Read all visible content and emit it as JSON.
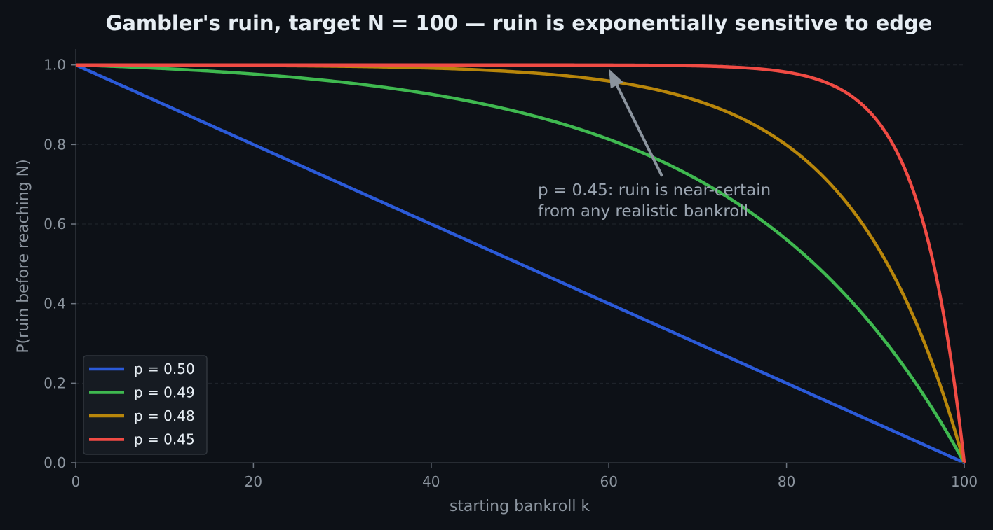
{
  "chart_data": {
    "type": "line",
    "title": "Gambler's ruin, target N = 100 — ruin is exponentially sensitive to edge",
    "xlabel": "starting bankroll k",
    "ylabel": "P(ruin before reaching N)",
    "xlim": [
      0,
      100
    ],
    "ylim": [
      0,
      1.04
    ],
    "x_ticks": [
      "0",
      "20",
      "40",
      "60",
      "80",
      "100"
    ],
    "y_ticks": [
      "0.0",
      "0.2",
      "0.4",
      "0.6",
      "0.8",
      "1.0"
    ],
    "grid": "horizontal dashed",
    "legend": "bottom-left",
    "target_N": 100,
    "series": [
      {
        "name": "p = 0.50",
        "p": 0.5,
        "color": "#2b5ad8"
      },
      {
        "name": "p = 0.49",
        "p": 0.49,
        "color": "#3fb950"
      },
      {
        "name": "p = 0.48",
        "p": 0.48,
        "color": "#b8860b"
      },
      {
        "name": "p = 0.45",
        "p": 0.45,
        "color": "#f04b44"
      }
    ],
    "sample_points": {
      "x": [
        0,
        20,
        40,
        60,
        80,
        90,
        95,
        100
      ],
      "p_0.50": [
        1.0,
        0.8,
        0.6,
        0.4,
        0.2,
        0.1,
        0.05,
        0.0
      ],
      "p_0.49": [
        1.0,
        0.98,
        0.93,
        0.82,
        0.55,
        0.33,
        0.18,
        0.0
      ],
      "p_0.48": [
        1.0,
        1.0,
        0.99,
        0.96,
        0.8,
        0.55,
        0.33,
        0.0
      ],
      "p_0.45": [
        1.0,
        1.0,
        1.0,
        1.0,
        0.98,
        0.87,
        0.63,
        0.0
      ]
    },
    "annotation": {
      "lines": [
        "p = 0.45: ruin is near-certain",
        "from any realistic bankroll"
      ],
      "arrow_tip": [
        60,
        0.99
      ],
      "arrow_tail": [
        66,
        0.72
      ],
      "color": "#8b949e"
    }
  }
}
